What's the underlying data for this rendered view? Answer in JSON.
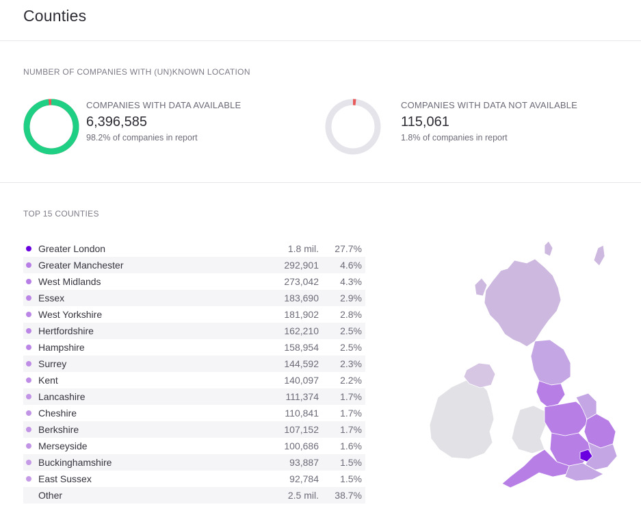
{
  "page": {
    "title": "Counties"
  },
  "location": {
    "section_label": "NUMBER OF COMPANIES WITH (UN)KNOWN LOCATION",
    "available": {
      "caption": "COMPANIES WITH DATA AVAILABLE",
      "count": "6,396,585",
      "percent_text": "98.2% of companies in report",
      "fraction": 0.982,
      "color": "#1ecf84"
    },
    "not_available": {
      "caption": "COMPANIES WITH DATA NOT AVAILABLE",
      "count": "115,061",
      "percent_text": "1.8% of companies in report",
      "fraction": 0.018,
      "color": "#e85a5a"
    },
    "ring_track_color": "#e4e4ea"
  },
  "counties": {
    "section_label": "TOP 15 COUNTIES",
    "rows": [
      {
        "name": "Greater London",
        "value": "1.8 mil.",
        "percent": "27.7%",
        "color": "#6a00e0"
      },
      {
        "name": "Greater Manchester",
        "value": "292,901",
        "percent": "4.6%",
        "color": "#b77ee6"
      },
      {
        "name": "West Midlands",
        "value": "273,042",
        "percent": "4.3%",
        "color": "#b77ee6"
      },
      {
        "name": "Essex",
        "value": "183,690",
        "percent": "2.9%",
        "color": "#bb86e6"
      },
      {
        "name": "West Yorkshire",
        "value": "181,902",
        "percent": "2.8%",
        "color": "#bb86e6"
      },
      {
        "name": "Hertfordshire",
        "value": "162,210",
        "percent": "2.5%",
        "color": "#bb86e6"
      },
      {
        "name": "Hampshire",
        "value": "158,954",
        "percent": "2.5%",
        "color": "#bb86e6"
      },
      {
        "name": "Surrey",
        "value": "144,592",
        "percent": "2.3%",
        "color": "#bf8de6"
      },
      {
        "name": "Kent",
        "value": "140,097",
        "percent": "2.2%",
        "color": "#bf8de6"
      },
      {
        "name": "Lancashire",
        "value": "111,374",
        "percent": "1.7%",
        "color": "#c294e6"
      },
      {
        "name": "Cheshire",
        "value": "110,841",
        "percent": "1.7%",
        "color": "#c294e6"
      },
      {
        "name": "Berkshire",
        "value": "107,152",
        "percent": "1.7%",
        "color": "#c294e6"
      },
      {
        "name": "Merseyside",
        "value": "100,686",
        "percent": "1.6%",
        "color": "#c294e6"
      },
      {
        "name": "Buckinghamshire",
        "value": "93,887",
        "percent": "1.5%",
        "color": "#c59ae6"
      },
      {
        "name": "East Sussex",
        "value": "92,784",
        "percent": "1.5%",
        "color": "#c59ae6"
      },
      {
        "name": "Other",
        "value": "2.5 mil.",
        "percent": "38.7%",
        "color": ""
      }
    ]
  },
  "map_colors": {
    "scotland": "#cdb8df",
    "ni": "#d6c6e4",
    "ireland": "#e2e2e6",
    "england_light": "#c4a6e4",
    "england_mid": "#b77ee6",
    "london": "#6a00e0",
    "border": "#ffffff"
  }
}
